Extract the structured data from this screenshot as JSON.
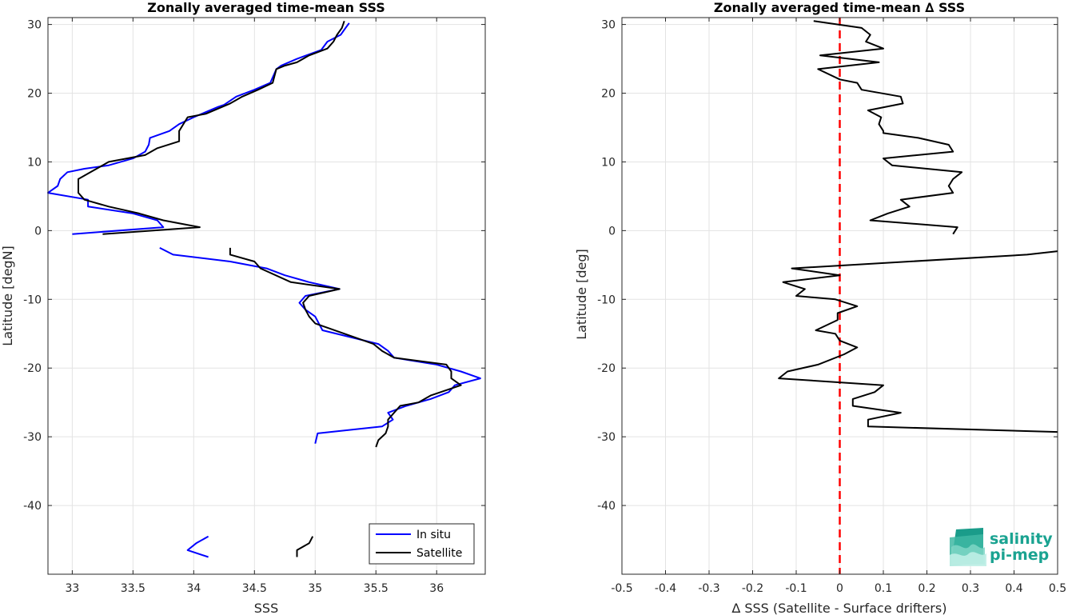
{
  "chart_data": [
    {
      "type": "line",
      "title": "Zonally averaged time-mean SSS",
      "xlabel": "SSS",
      "ylabel": "Latitude [degN]",
      "xlim": [
        32.8,
        36.4
      ],
      "ylim": [
        -50,
        31
      ],
      "xticks": [
        33,
        33.5,
        34,
        34.5,
        35,
        35.5,
        36
      ],
      "xtick_labels": [
        "33",
        "33.5",
        "34",
        "34.5",
        "35",
        "35.5",
        "36"
      ],
      "yticks": [
        30,
        20,
        10,
        0,
        -10,
        -20,
        -30,
        -40
      ],
      "ytick_labels": [
        "30",
        "20",
        "10",
        "0",
        "-10",
        "-20",
        "-30",
        "-40"
      ],
      "grid": true,
      "legend": "bottom-right",
      "series": [
        {
          "name": "In situ",
          "color": "#0000ff",
          "segments": [
            [
              [
                35.28,
                30.2
              ],
              [
                35.25,
                29.5
              ],
              [
                35.21,
                28.5
              ],
              [
                35.1,
                27.5
              ],
              [
                35.05,
                26.3
              ],
              [
                34.85,
                25
              ],
              [
                34.72,
                24
              ],
              [
                34.68,
                23.5
              ],
              [
                34.63,
                21.5
              ],
              [
                34.5,
                20.5
              ],
              [
                34.35,
                19.5
              ],
              [
                34.25,
                18.3
              ],
              [
                34.2,
                18
              ],
              [
                34.0,
                16.5
              ],
              [
                33.88,
                15.5
              ],
              [
                33.8,
                14.5
              ],
              [
                33.64,
                13.5
              ],
              [
                33.63,
                12.5
              ],
              [
                33.6,
                11.5
              ],
              [
                33.5,
                10.5
              ],
              [
                33.3,
                9.5
              ],
              [
                33.1,
                9
              ],
              [
                32.96,
                8.5
              ],
              [
                32.9,
                7.5
              ],
              [
                32.88,
                6.5
              ],
              [
                32.8,
                5.5
              ],
              [
                33.13,
                4.5
              ],
              [
                33.13,
                3.5
              ],
              [
                33.5,
                2.5
              ],
              [
                33.7,
                1.5
              ],
              [
                33.75,
                0.5
              ],
              [
                33.0,
                -0.5
              ]
            ],
            [
              [
                33.72,
                -2.5
              ],
              [
                33.83,
                -3.5
              ],
              [
                34.3,
                -4.5
              ],
              [
                34.6,
                -5.5
              ],
              [
                34.75,
                -6.5
              ],
              [
                34.95,
                -7.5
              ],
              [
                35.2,
                -8.5
              ],
              [
                34.92,
                -9.5
              ],
              [
                34.87,
                -10.5
              ],
              [
                34.92,
                -11.5
              ],
              [
                35.0,
                -12.5
              ],
              [
                35.06,
                -14.5
              ],
              [
                35.52,
                -16.5
              ],
              [
                35.6,
                -17.5
              ],
              [
                35.65,
                -18.5
              ],
              [
                36.0,
                -19.5
              ],
              [
                36.2,
                -20.5
              ],
              [
                36.36,
                -21.5
              ],
              [
                36.15,
                -22.5
              ],
              [
                36.1,
                -23.5
              ],
              [
                35.95,
                -24.5
              ],
              [
                35.75,
                -25.5
              ],
              [
                35.6,
                -26.5
              ],
              [
                35.64,
                -27.5
              ],
              [
                35.55,
                -28.5
              ],
              [
                35.02,
                -29.5
              ],
              [
                35.0,
                -31
              ]
            ],
            [
              [
                34.12,
                -44.5
              ],
              [
                34.02,
                -45.5
              ],
              [
                33.95,
                -46.5
              ],
              [
                34.12,
                -47.5
              ]
            ]
          ]
        },
        {
          "name": "Satellite",
          "color": "#000000",
          "segments": [
            [
              [
                35.24,
                30.5
              ],
              [
                35.22,
                29.5
              ],
              [
                35.18,
                28.5
              ],
              [
                35.15,
                27.5
              ],
              [
                35.1,
                26.5
              ],
              [
                34.95,
                25.5
              ],
              [
                34.85,
                24.5
              ],
              [
                34.75,
                24
              ],
              [
                34.68,
                23.5
              ],
              [
                34.65,
                21.5
              ],
              [
                34.53,
                20.5
              ],
              [
                34.4,
                19.5
              ],
              [
                34.3,
                18.5
              ],
              [
                34.1,
                17
              ],
              [
                33.95,
                16.5
              ],
              [
                33.88,
                14.5
              ],
              [
                33.88,
                13
              ],
              [
                33.7,
                12
              ],
              [
                33.6,
                11
              ],
              [
                33.3,
                10
              ],
              [
                33.15,
                8.5
              ],
              [
                33.05,
                7.5
              ],
              [
                33.05,
                5.5
              ],
              [
                33.1,
                4.5
              ],
              [
                33.3,
                3.5
              ],
              [
                33.55,
                2.5
              ],
              [
                33.75,
                1.5
              ],
              [
                34.05,
                0.5
              ],
              [
                33.25,
                -0.5
              ]
            ],
            [
              [
                34.3,
                -2.5
              ],
              [
                34.3,
                -3.5
              ],
              [
                34.5,
                -4.5
              ],
              [
                34.55,
                -5.5
              ],
              [
                34.8,
                -7.5
              ],
              [
                35.2,
                -8.5
              ],
              [
                34.95,
                -9.5
              ],
              [
                34.9,
                -10.5
              ],
              [
                34.92,
                -11.5
              ],
              [
                34.95,
                -12.5
              ],
              [
                35.0,
                -13.5
              ],
              [
                35.48,
                -16.5
              ],
              [
                35.55,
                -17.5
              ],
              [
                35.65,
                -18.5
              ],
              [
                36.08,
                -19.5
              ],
              [
                36.12,
                -20.5
              ],
              [
                36.12,
                -21.5
              ],
              [
                36.2,
                -22.5
              ],
              [
                35.95,
                -24
              ],
              [
                35.85,
                -25
              ],
              [
                35.7,
                -25.5
              ],
              [
                35.6,
                -27.5
              ],
              [
                35.6,
                -28.5
              ],
              [
                35.58,
                -29.5
              ],
              [
                35.52,
                -30.5
              ],
              [
                35.5,
                -31.5
              ]
            ],
            [
              [
                34.98,
                -44.5
              ],
              [
                34.95,
                -45.5
              ],
              [
                34.85,
                -46.5
              ],
              [
                34.85,
                -47.5
              ]
            ]
          ]
        }
      ]
    },
    {
      "type": "line",
      "title": "Zonally averaged time-mean ∆ SSS",
      "xlabel": "∆ SSS (Satellite - Surface drifters)",
      "ylabel": "Latitude [deg]",
      "xlim": [
        -0.5,
        0.5
      ],
      "ylim": [
        -50,
        31
      ],
      "xticks": [
        -0.5,
        -0.4,
        -0.3,
        -0.2,
        -0.1,
        0,
        0.1,
        0.2,
        0.3,
        0.4,
        0.5
      ],
      "xtick_labels": [
        "-0.5",
        "-0.4",
        "-0.3",
        "-0.2",
        "-0.1",
        "0",
        "0.1",
        "0.2",
        "0.3",
        "0.4",
        "0.5"
      ],
      "yticks": [
        30,
        20,
        10,
        0,
        -10,
        -20,
        -30,
        -40
      ],
      "ytick_labels": [
        "30",
        "20",
        "10",
        "0",
        "-10",
        "-20",
        "-30",
        "-40"
      ],
      "grid": true,
      "reference_line": {
        "x": 0,
        "color": "#ff0000",
        "style": "dashed"
      },
      "series": [
        {
          "color": "#000000",
          "segments": [
            [
              [
                -0.06,
                30.5
              ],
              [
                0.05,
                29.5
              ],
              [
                0.07,
                28.5
              ],
              [
                0.06,
                27.5
              ],
              [
                0.1,
                26.5
              ],
              [
                -0.045,
                25.5
              ],
              [
                0.09,
                24.5
              ],
              [
                -0.05,
                23.5
              ],
              [
                0.0,
                22
              ],
              [
                0.04,
                21.5
              ],
              [
                0.05,
                20.5
              ],
              [
                0.14,
                19.5
              ],
              [
                0.145,
                18.5
              ],
              [
                0.065,
                17.5
              ],
              [
                0.095,
                16.5
              ],
              [
                0.09,
                15.5
              ],
              [
                0.1,
                14.5
              ],
              [
                0.1,
                14.2
              ],
              [
                0.18,
                13.5
              ],
              [
                0.25,
                12.5
              ],
              [
                0.26,
                11.5
              ],
              [
                0.1,
                10.5
              ],
              [
                0.12,
                9.5
              ],
              [
                0.28,
                8.5
              ],
              [
                0.26,
                7.5
              ],
              [
                0.25,
                6.5
              ],
              [
                0.26,
                5.5
              ],
              [
                0.14,
                4.5
              ],
              [
                0.16,
                3.5
              ],
              [
                0.11,
                2.5
              ],
              [
                0.07,
                1.5
              ],
              [
                0.27,
                0.5
              ],
              [
                0.26,
                -0.5
              ]
            ],
            [
              [
                0.5,
                -3
              ],
              [
                0.43,
                -3.5
              ],
              [
                -0.11,
                -5.5
              ],
              [
                0.0,
                -6.5
              ],
              [
                -0.13,
                -7.5
              ],
              [
                -0.08,
                -8.5
              ],
              [
                -0.1,
                -9.5
              ],
              [
                -0.01,
                -10
              ],
              [
                0.04,
                -11
              ],
              [
                -0.005,
                -12
              ],
              [
                -0.005,
                -13
              ],
              [
                -0.055,
                -14.5
              ],
              [
                -0.01,
                -15
              ],
              [
                0.0,
                -16
              ],
              [
                0.04,
                -17
              ],
              [
                0.01,
                -18
              ],
              [
                -0.05,
                -19.5
              ],
              [
                -0.12,
                -20.5
              ],
              [
                -0.14,
                -21.5
              ],
              [
                0.1,
                -22.5
              ],
              [
                0.08,
                -23.5
              ],
              [
                0.03,
                -24.5
              ],
              [
                0.03,
                -25.5
              ],
              [
                0.14,
                -26.5
              ],
              [
                0.065,
                -27.5
              ],
              [
                0.065,
                -28.5
              ],
              [
                0.5,
                -29.3
              ]
            ]
          ]
        }
      ]
    }
  ],
  "legend": {
    "insitu_label": "In situ",
    "satellite_label": "Satellite"
  },
  "logo": {
    "line1": "salinity",
    "line2": "pi-mep"
  }
}
